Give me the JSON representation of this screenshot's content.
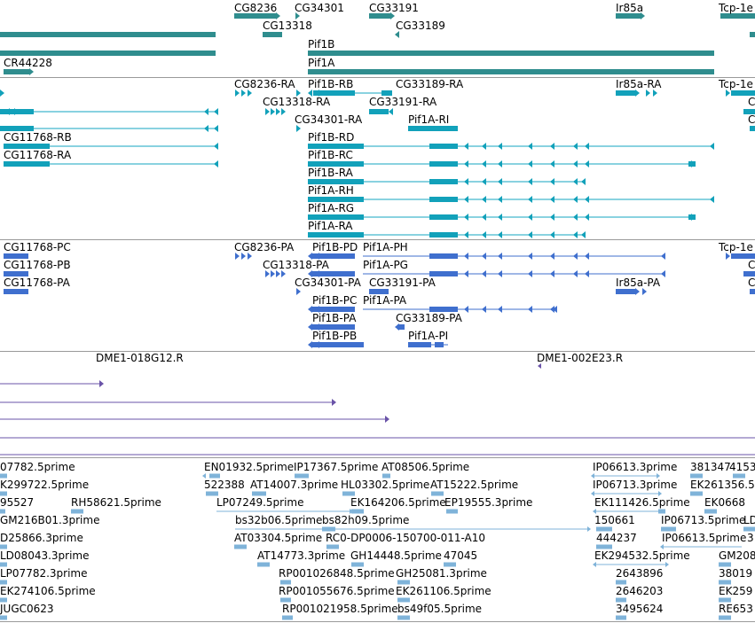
{
  "colors": {
    "gene": "#2f8d8e",
    "transcript_cds": "#12a1ba",
    "transcript_line": "#13a6c0",
    "cdna": "#3f6fce",
    "bac_end": "#6a53a8",
    "est": "#7fb3d9",
    "separator": "#9a9a9a",
    "background": "#ffffff"
  },
  "tracks": {
    "genes": {
      "labels": [
        "CG8236",
        "CG34301",
        "CG33191",
        "Ir85a",
        "Tcp-1e",
        "CG13318",
        "CG33189",
        "Pif1B",
        "CR44228",
        "Pif1A"
      ]
    },
    "transcripts": {
      "labels": [
        "CG8236-RA",
        "Pif1B-RB",
        "CG33189-RA",
        "Ir85a-RA",
        "Tcp-1e",
        "CG13318-RA",
        "CG33191-RA",
        "C",
        "CG34301-RA",
        "Pif1A-RI",
        "CG11768-RB",
        "Pif1B-RD",
        "C",
        "Pif1B-RC",
        "CG11768-RA",
        "Pif1B-RA",
        "Pif1A-RH",
        "Pif1A-RG",
        "Pif1A-RA"
      ]
    },
    "cdnas": {
      "labels": [
        "CG11768-PC",
        "CG8236-PA",
        "Pif1B-PD",
        "Pif1A-PH",
        "Tcp-1e",
        "CG11768-PB",
        "CG13318-PA",
        "Pif1A-PG",
        "C",
        "CG11768-PA",
        "CG34301-PA",
        "CG33191-PA",
        "Ir85a-PA",
        "C",
        "Pif1B-PC",
        "Pif1A-PA",
        "Pif1B-PA",
        "CG33189-PA",
        "Pif1B-PB",
        "Pif1A-PI"
      ]
    },
    "bac_ends": {
      "labels": [
        "DME1-018G12.R",
        "DME1-002E23.R"
      ]
    },
    "ests": {
      "labels": [
        "07782.5prime",
        "EN01932.5prime",
        "IP17367.5prime",
        "AT08506.5prime",
        "IP06613.3prime",
        "381347",
        "4153",
        "K299722.5prime",
        "522388",
        "AT14007.3prime",
        "HL03302.5prime",
        "AT15222.5prime",
        "IP06713.3prime",
        "EK261356.5",
        "95527",
        "RH58621.5prime",
        "LP07249.5prime",
        "EK164206.5prime",
        "EP19555.3prime",
        "EK111426.5prime",
        "EK0668",
        "bs32b06.5prime",
        "bs82h09.5prime",
        "150661",
        "IP06713.5prime",
        "LD",
        "GM216B01.3prime",
        "D25866.3prime",
        "AT03304.5prime",
        "RC0-DP0006-150700-011-A10",
        "444237",
        "IP06613.5prime",
        "3",
        "LD08043.3prime",
        "AT14773.3prime",
        "GH14448.5prime",
        "47045",
        "EK294532.5prime",
        "GM208",
        "LP07782.3prime",
        "RP001026848.5prime",
        "GH25081.3prime",
        "2643896",
        "38019",
        "EK274106.5prime",
        "RP001055676.5prime",
        "EK261106.5prime",
        "2646203",
        "EK259",
        "JUGC0623",
        "RP001021958.5prime",
        "bs49f05.5prime",
        "3495624",
        "RE653"
      ]
    }
  }
}
